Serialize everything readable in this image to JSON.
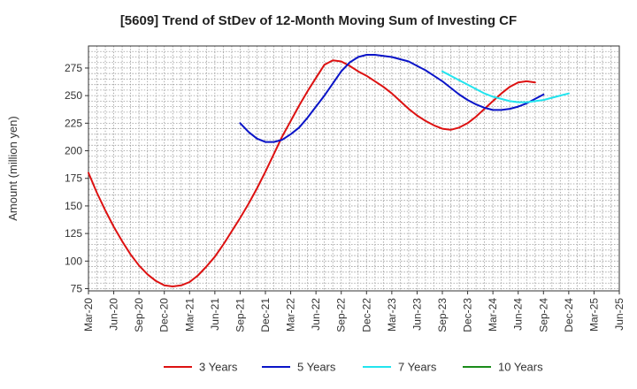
{
  "chart_data": {
    "type": "line",
    "title": "[5609]  Trend of StDev of 12-Month Moving Sum of Investing CF",
    "xlabel": "",
    "ylabel": "Amount (million yen)",
    "ylim": [
      73,
      295
    ],
    "yticks": [
      75,
      100,
      125,
      150,
      175,
      200,
      225,
      250,
      275
    ],
    "xticks": [
      "Mar-20",
      "Jun-20",
      "Sep-20",
      "Dec-20",
      "Mar-21",
      "Jun-21",
      "Sep-21",
      "Dec-21",
      "Mar-22",
      "Jun-22",
      "Sep-22",
      "Dec-22",
      "Mar-23",
      "Jun-23",
      "Sep-23",
      "Dec-23",
      "Mar-24",
      "Jun-24",
      "Sep-24",
      "Dec-24",
      "Mar-25",
      "Jun-25"
    ],
    "grid": true,
    "legend_position": "bottom",
    "series": [
      {
        "name": "3 Years",
        "color": "#dd1111",
        "start_index": 0,
        "values": [
          180,
          162,
          146,
          131,
          118,
          106,
          96,
          88,
          82,
          78,
          77,
          78,
          81,
          87,
          95,
          104,
          115,
          127,
          139,
          152,
          166,
          181,
          197,
          213,
          227,
          241,
          254,
          266,
          278,
          282,
          281,
          277,
          272,
          268,
          263,
          258,
          252,
          245,
          238,
          232,
          227,
          223,
          220,
          219,
          221,
          225,
          231,
          238,
          245,
          252,
          258,
          262,
          263,
          262
        ]
      },
      {
        "name": "5 Years",
        "color": "#0a14c8",
        "start_index": 18,
        "values": [
          225,
          217,
          211,
          208,
          208,
          210,
          215,
          221,
          230,
          240,
          250,
          261,
          272,
          280,
          285,
          287,
          287,
          286,
          285,
          283,
          281,
          277,
          273,
          268,
          263,
          257,
          251,
          246,
          242,
          239,
          237,
          237,
          238,
          240,
          243,
          247,
          251
        ]
      },
      {
        "name": "7 Years",
        "color": "#22e4ee",
        "start_index": 42,
        "values": [
          272,
          268,
          264,
          260,
          256,
          252,
          249,
          247,
          245,
          244,
          244,
          245,
          246,
          248,
          250,
          252
        ]
      },
      {
        "name": "10 Years",
        "color": "#1a8c1a",
        "start_index": 0,
        "values": []
      }
    ]
  }
}
